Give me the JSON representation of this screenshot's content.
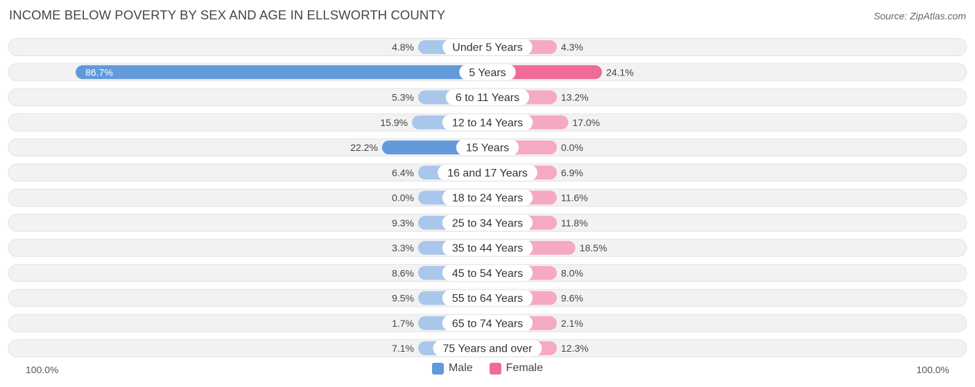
{
  "header": {
    "title": "INCOME BELOW POVERTY BY SEX AND AGE IN ELLSWORTH COUNTY",
    "source": "Source: ZipAtlas.com"
  },
  "colors": {
    "male_light": "#a9c7ea",
    "male_strong": "#6199db",
    "female_light": "#f6a9c2",
    "female_strong": "#f06b96"
  },
  "chart_data": {
    "type": "bar",
    "orientation": "horizontal-diverging",
    "categories": [
      "Under 5 Years",
      "5 Years",
      "6 to 11 Years",
      "12 to 14 Years",
      "15 Years",
      "16 and 17 Years",
      "18 to 24 Years",
      "25 to 34 Years",
      "35 to 44 Years",
      "45 to 54 Years",
      "55 to 64 Years",
      "65 to 74 Years",
      "75 Years and over"
    ],
    "series": [
      {
        "name": "Male",
        "values": [
          4.8,
          86.7,
          5.3,
          15.9,
          22.2,
          6.4,
          0.0,
          9.3,
          3.3,
          8.6,
          9.5,
          1.7,
          7.1
        ],
        "labels": [
          "4.8%",
          "86.7%",
          "5.3%",
          "15.9%",
          "22.2%",
          "6.4%",
          "0.0%",
          "9.3%",
          "3.3%",
          "8.6%",
          "9.5%",
          "1.7%",
          "7.1%"
        ]
      },
      {
        "name": "Female",
        "values": [
          4.3,
          24.1,
          13.2,
          17.0,
          0.0,
          6.9,
          11.6,
          11.8,
          18.5,
          8.0,
          9.6,
          2.1,
          12.3
        ],
        "labels": [
          "4.3%",
          "24.1%",
          "13.2%",
          "17.0%",
          "0.0%",
          "6.9%",
          "11.6%",
          "11.8%",
          "18.5%",
          "8.0%",
          "9.6%",
          "2.1%",
          "12.3%"
        ]
      }
    ],
    "xlim": [
      -100,
      100
    ],
    "axis_labels": {
      "left": "100.0%",
      "right": "100.0%"
    },
    "legend_position": "bottom-center"
  }
}
